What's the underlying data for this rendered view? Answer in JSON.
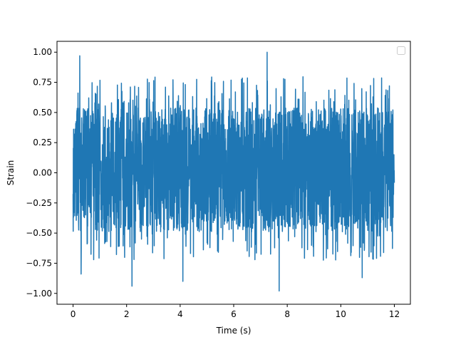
{
  "chart_data": {
    "type": "line",
    "title": "",
    "xlabel": "Time (s)",
    "ylabel": "Strain",
    "xlim": [
      -0.6,
      12.6
    ],
    "ylim": [
      -1.09,
      1.09
    ],
    "xticks": [
      0,
      2,
      4,
      6,
      8,
      10,
      12
    ],
    "xtick_labels": [
      "0",
      "2",
      "4",
      "6",
      "8",
      "10",
      "12"
    ],
    "yticks": [
      1.0,
      0.75,
      0.5,
      0.25,
      0.0,
      -0.25,
      -0.5,
      -0.75,
      -1.0
    ],
    "ytick_labels": [
      "1.00",
      "0.75",
      "0.50",
      "0.25",
      "0.00",
      "−0.25",
      "−0.50",
      "−0.75",
      "−1.00"
    ],
    "grid": false,
    "legend": {
      "placement": "upper right",
      "entries": []
    },
    "series": [
      {
        "color": "#1f77b4",
        "x_range": [
          0,
          12
        ],
        "typical_envelope": [
          -0.5,
          0.55
        ],
        "peaks": [
          {
            "x": 0.25,
            "y": 0.97
          },
          {
            "x": 7.25,
            "y": 1.0
          },
          {
            "x": 0.3,
            "y": -0.84
          },
          {
            "x": 2.2,
            "y": -0.94
          },
          {
            "x": 4.1,
            "y": -0.9
          },
          {
            "x": 7.7,
            "y": -0.98
          },
          {
            "x": 10.8,
            "y": -0.87
          }
        ]
      }
    ]
  }
}
